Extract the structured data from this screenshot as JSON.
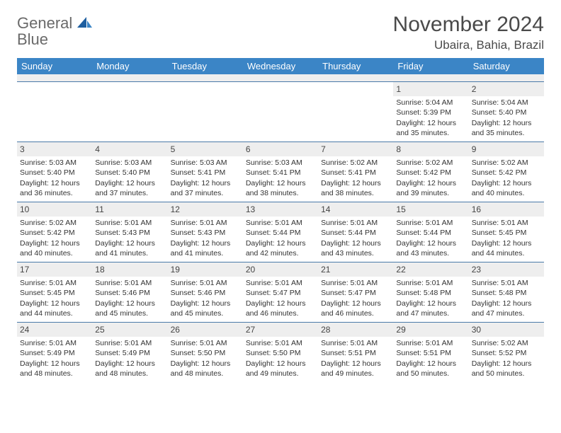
{
  "logo": {
    "word1": "General",
    "word2": "Blue"
  },
  "title": "November 2024",
  "location": "Ubaira, Bahia, Brazil",
  "colors": {
    "header_bg": "#3b85c6",
    "header_text": "#ffffff",
    "daynum_bg": "#eeeeee",
    "week_border": "#4a7aa8",
    "logo_gray": "#6a6a6a",
    "logo_blue": "#2f7dc1"
  },
  "dayNames": [
    "Sunday",
    "Monday",
    "Tuesday",
    "Wednesday",
    "Thursday",
    "Friday",
    "Saturday"
  ],
  "weeks": [
    [
      {
        "n": "",
        "sr": "",
        "ss": "",
        "dl": ""
      },
      {
        "n": "",
        "sr": "",
        "ss": "",
        "dl": ""
      },
      {
        "n": "",
        "sr": "",
        "ss": "",
        "dl": ""
      },
      {
        "n": "",
        "sr": "",
        "ss": "",
        "dl": ""
      },
      {
        "n": "",
        "sr": "",
        "ss": "",
        "dl": ""
      },
      {
        "n": "1",
        "sr": "Sunrise: 5:04 AM",
        "ss": "Sunset: 5:39 PM",
        "dl": "Daylight: 12 hours and 35 minutes."
      },
      {
        "n": "2",
        "sr": "Sunrise: 5:04 AM",
        "ss": "Sunset: 5:40 PM",
        "dl": "Daylight: 12 hours and 35 minutes."
      }
    ],
    [
      {
        "n": "3",
        "sr": "Sunrise: 5:03 AM",
        "ss": "Sunset: 5:40 PM",
        "dl": "Daylight: 12 hours and 36 minutes."
      },
      {
        "n": "4",
        "sr": "Sunrise: 5:03 AM",
        "ss": "Sunset: 5:40 PM",
        "dl": "Daylight: 12 hours and 37 minutes."
      },
      {
        "n": "5",
        "sr": "Sunrise: 5:03 AM",
        "ss": "Sunset: 5:41 PM",
        "dl": "Daylight: 12 hours and 37 minutes."
      },
      {
        "n": "6",
        "sr": "Sunrise: 5:03 AM",
        "ss": "Sunset: 5:41 PM",
        "dl": "Daylight: 12 hours and 38 minutes."
      },
      {
        "n": "7",
        "sr": "Sunrise: 5:02 AM",
        "ss": "Sunset: 5:41 PM",
        "dl": "Daylight: 12 hours and 38 minutes."
      },
      {
        "n": "8",
        "sr": "Sunrise: 5:02 AM",
        "ss": "Sunset: 5:42 PM",
        "dl": "Daylight: 12 hours and 39 minutes."
      },
      {
        "n": "9",
        "sr": "Sunrise: 5:02 AM",
        "ss": "Sunset: 5:42 PM",
        "dl": "Daylight: 12 hours and 40 minutes."
      }
    ],
    [
      {
        "n": "10",
        "sr": "Sunrise: 5:02 AM",
        "ss": "Sunset: 5:42 PM",
        "dl": "Daylight: 12 hours and 40 minutes."
      },
      {
        "n": "11",
        "sr": "Sunrise: 5:01 AM",
        "ss": "Sunset: 5:43 PM",
        "dl": "Daylight: 12 hours and 41 minutes."
      },
      {
        "n": "12",
        "sr": "Sunrise: 5:01 AM",
        "ss": "Sunset: 5:43 PM",
        "dl": "Daylight: 12 hours and 41 minutes."
      },
      {
        "n": "13",
        "sr": "Sunrise: 5:01 AM",
        "ss": "Sunset: 5:44 PM",
        "dl": "Daylight: 12 hours and 42 minutes."
      },
      {
        "n": "14",
        "sr": "Sunrise: 5:01 AM",
        "ss": "Sunset: 5:44 PM",
        "dl": "Daylight: 12 hours and 43 minutes."
      },
      {
        "n": "15",
        "sr": "Sunrise: 5:01 AM",
        "ss": "Sunset: 5:44 PM",
        "dl": "Daylight: 12 hours and 43 minutes."
      },
      {
        "n": "16",
        "sr": "Sunrise: 5:01 AM",
        "ss": "Sunset: 5:45 PM",
        "dl": "Daylight: 12 hours and 44 minutes."
      }
    ],
    [
      {
        "n": "17",
        "sr": "Sunrise: 5:01 AM",
        "ss": "Sunset: 5:45 PM",
        "dl": "Daylight: 12 hours and 44 minutes."
      },
      {
        "n": "18",
        "sr": "Sunrise: 5:01 AM",
        "ss": "Sunset: 5:46 PM",
        "dl": "Daylight: 12 hours and 45 minutes."
      },
      {
        "n": "19",
        "sr": "Sunrise: 5:01 AM",
        "ss": "Sunset: 5:46 PM",
        "dl": "Daylight: 12 hours and 45 minutes."
      },
      {
        "n": "20",
        "sr": "Sunrise: 5:01 AM",
        "ss": "Sunset: 5:47 PM",
        "dl": "Daylight: 12 hours and 46 minutes."
      },
      {
        "n": "21",
        "sr": "Sunrise: 5:01 AM",
        "ss": "Sunset: 5:47 PM",
        "dl": "Daylight: 12 hours and 46 minutes."
      },
      {
        "n": "22",
        "sr": "Sunrise: 5:01 AM",
        "ss": "Sunset: 5:48 PM",
        "dl": "Daylight: 12 hours and 47 minutes."
      },
      {
        "n": "23",
        "sr": "Sunrise: 5:01 AM",
        "ss": "Sunset: 5:48 PM",
        "dl": "Daylight: 12 hours and 47 minutes."
      }
    ],
    [
      {
        "n": "24",
        "sr": "Sunrise: 5:01 AM",
        "ss": "Sunset: 5:49 PM",
        "dl": "Daylight: 12 hours and 48 minutes."
      },
      {
        "n": "25",
        "sr": "Sunrise: 5:01 AM",
        "ss": "Sunset: 5:49 PM",
        "dl": "Daylight: 12 hours and 48 minutes."
      },
      {
        "n": "26",
        "sr": "Sunrise: 5:01 AM",
        "ss": "Sunset: 5:50 PM",
        "dl": "Daylight: 12 hours and 48 minutes."
      },
      {
        "n": "27",
        "sr": "Sunrise: 5:01 AM",
        "ss": "Sunset: 5:50 PM",
        "dl": "Daylight: 12 hours and 49 minutes."
      },
      {
        "n": "28",
        "sr": "Sunrise: 5:01 AM",
        "ss": "Sunset: 5:51 PM",
        "dl": "Daylight: 12 hours and 49 minutes."
      },
      {
        "n": "29",
        "sr": "Sunrise: 5:01 AM",
        "ss": "Sunset: 5:51 PM",
        "dl": "Daylight: 12 hours and 50 minutes."
      },
      {
        "n": "30",
        "sr": "Sunrise: 5:02 AM",
        "ss": "Sunset: 5:52 PM",
        "dl": "Daylight: 12 hours and 50 minutes."
      }
    ]
  ]
}
